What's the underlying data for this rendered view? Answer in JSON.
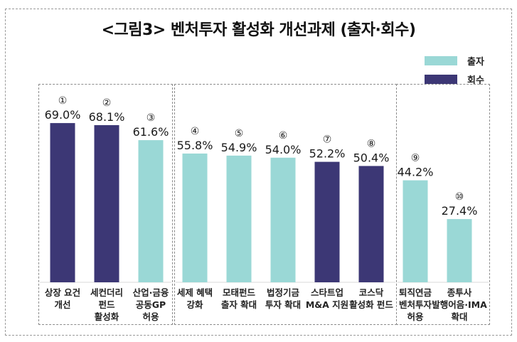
{
  "chart_data": {
    "type": "bar",
    "title": "<그림3> 벤처투자 활성화 개선과제 (출자·회수)",
    "xlabel": "",
    "ylabel": "",
    "ylim": [
      0,
      75
    ],
    "grid": false,
    "legend_position": "top-right",
    "legend": [
      {
        "name": "출자",
        "color": "#9ad8d6"
      },
      {
        "name": "회수",
        "color": "#3c3775"
      }
    ],
    "groups": [
      {
        "name": "group-1",
        "bars": [
          0,
          1,
          2
        ]
      },
      {
        "name": "group-2",
        "bars": [
          3,
          4,
          5,
          6,
          7
        ]
      },
      {
        "name": "group-3",
        "bars": [
          8,
          9
        ]
      }
    ],
    "categories": [
      [
        "상장 요건",
        "개선"
      ],
      [
        "세컨더리",
        "펀드",
        "활성화"
      ],
      [
        "산업·금융",
        "공동GP",
        "허용"
      ],
      [
        "세제 혜택",
        "강화"
      ],
      [
        "모태펀드",
        "출자 확대"
      ],
      [
        "법정기금",
        "투자 확대"
      ],
      [
        "스타트업",
        "M&A 지원"
      ],
      [
        "코스닥",
        "활성화 펀드"
      ],
      [
        "퇴직연금",
        "벤처투자",
        "허용"
      ],
      [
        "종투사",
        "발행어음·IMA",
        "확대"
      ]
    ],
    "ranks": [
      "①",
      "②",
      "③",
      "④",
      "⑤",
      "⑥",
      "⑦",
      "⑧",
      "⑨",
      "⑩"
    ],
    "values": [
      69.0,
      68.1,
      61.6,
      55.8,
      54.9,
      54.0,
      52.2,
      50.4,
      44.2,
      27.4
    ],
    "value_labels": [
      "69.0%",
      "68.1%",
      "61.6%",
      "55.8%",
      "54.9%",
      "54.0%",
      "52.2%",
      "50.4%",
      "44.2%",
      "27.4%"
    ],
    "series_of_bar": [
      "회수",
      "회수",
      "출자",
      "출자",
      "출자",
      "출자",
      "회수",
      "회수",
      "출자",
      "출자"
    ]
  }
}
